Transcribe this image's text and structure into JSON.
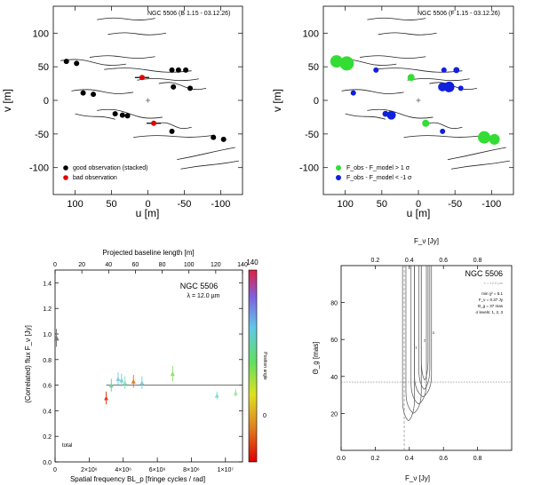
{
  "chart_data": [
    {
      "type": "scatter",
      "panel": "uv-coverage",
      "title": "NGC 5506 (B 1.15 - 03.12.26)",
      "xlabel": "u [m]",
      "ylabel": "v [m]",
      "xlim": [
        130,
        -130
      ],
      "ylim": [
        -140,
        140
      ],
      "xticks": [
        100,
        50,
        0,
        -50,
        -100
      ],
      "yticks": [
        100,
        50,
        0,
        -50,
        -100
      ],
      "good_points": [
        [
          112,
          58
        ],
        [
          98,
          55
        ],
        [
          89,
          11
        ],
        [
          75,
          9
        ],
        [
          45,
          -20
        ],
        [
          35,
          -22
        ],
        [
          28,
          -23
        ],
        [
          -33,
          45
        ],
        [
          -42,
          45
        ],
        [
          -52,
          45
        ],
        [
          -35,
          20
        ],
        [
          -58,
          18
        ],
        [
          -33,
          -46
        ],
        [
          -90,
          -55
        ],
        [
          -104,
          -58
        ]
      ],
      "bad_points": [
        [
          8,
          34
        ],
        [
          -8,
          -34
        ]
      ],
      "center_cross": [
        0,
        0
      ],
      "legend": [
        "good observation (stacked)",
        "bad observation"
      ],
      "legend_colors": [
        "#000000",
        "#e00000"
      ]
    },
    {
      "type": "scatter",
      "panel": "uv-residuals",
      "title": "NGC 5506 (F 1.15 - 03.12.26)",
      "xlabel": "u [m]",
      "ylabel": "v [m]",
      "xlim": [
        130,
        -130
      ],
      "ylim": [
        -140,
        140
      ],
      "xticks": [
        100,
        50,
        0,
        -50,
        -100
      ],
      "yticks": [
        100,
        50,
        0,
        -50,
        -100
      ],
      "positive_residuals": [
        [
          112,
          58
        ],
        [
          98,
          55
        ],
        [
          10,
          34
        ],
        [
          -10,
          -34
        ],
        [
          -90,
          -55
        ],
        [
          -104,
          -58
        ]
      ],
      "positive_sizes": [
        7,
        8,
        4,
        4,
        7,
        6
      ],
      "negative_residuals": [
        [
          58,
          45
        ],
        [
          89,
          11
        ],
        [
          45,
          -20
        ],
        [
          37,
          -22
        ],
        [
          -33,
          20
        ],
        [
          -42,
          20
        ],
        [
          -58,
          18
        ],
        [
          -33,
          -46
        ],
        [
          -35,
          45
        ],
        [
          -52,
          45
        ]
      ],
      "negative_sizes": [
        3,
        3,
        3,
        5,
        5,
        6,
        3,
        3,
        3,
        3
      ],
      "open_circles": [
        [
          -42,
          20
        ],
        [
          -52,
          45
        ],
        [
          45,
          -20
        ]
      ],
      "center_cross": [
        0,
        0
      ],
      "legend": [
        "F_obs - F_model > 1 σ",
        "F_obs - F_model < -1 σ"
      ],
      "legend_colors": [
        "#33dd33",
        "#1020dd"
      ]
    },
    {
      "type": "scatter",
      "panel": "correlated-flux",
      "title": "NGC 5506",
      "subtitle": "λ = 12.0 µm",
      "xlabel": "Spatial frequency BL_p [fringe cycles / rad]",
      "ylabel": "(Correlated) flux F_ν [Jy]",
      "top_xlabel": "Projected baseline length [m]",
      "xlim": [
        0,
        11000000.0
      ],
      "ylim": [
        0,
        1.5
      ],
      "xticks": [
        0,
        2000000.0,
        4000000.0,
        6000000.0,
        8000000.0,
        10000000.0
      ],
      "xtick_labels": [
        "0",
        "2×10⁶",
        "4×10⁶",
        "6×10⁶",
        "8×10⁶",
        "1×10⁷"
      ],
      "yticks": [
        0.0,
        0.2,
        0.4,
        0.6,
        0.8,
        1.0,
        1.2,
        1.4
      ],
      "top_ticks": [
        0,
        20,
        40,
        60,
        80,
        100,
        120,
        140
      ],
      "colorbar_ticks": [
        0,
        140
      ],
      "colorbar_ticklabels": [
        "0",
        "140"
      ],
      "colorbar_label": "Position angle",
      "total_flux": {
        "x": 30000.0,
        "y": 0.97,
        "err": 0.07,
        "color": "#777777"
      },
      "total_flux_label": "total",
      "points": [
        {
          "x": 3000000.0,
          "y": 0.5,
          "err": 0.05,
          "color": "#e04020"
        },
        {
          "x": 3300000.0,
          "y": 0.6,
          "err": 0.05,
          "color": "#6fd0a0"
        },
        {
          "x": 3700000.0,
          "y": 0.65,
          "err": 0.05,
          "color": "#80c8e8"
        },
        {
          "x": 3900000.0,
          "y": 0.64,
          "err": 0.05,
          "color": "#70d8d0"
        },
        {
          "x": 4100000.0,
          "y": 0.62,
          "err": 0.05,
          "color": "#90e0c0"
        },
        {
          "x": 4600000.0,
          "y": 0.63,
          "err": 0.05,
          "color": "#e08020"
        },
        {
          "x": 5100000.0,
          "y": 0.62,
          "err": 0.05,
          "color": "#80d0e0"
        },
        {
          "x": 6900000.0,
          "y": 0.69,
          "err": 0.06,
          "color": "#90e070"
        },
        {
          "x": 9500000.0,
          "y": 0.52,
          "err": 0.03,
          "color": "#80e0d8"
        },
        {
          "x": 10600000.0,
          "y": 0.54,
          "err": 0.03,
          "color": "#a0e8a0"
        }
      ],
      "model_line": {
        "x0": 3000000.0,
        "x1": 11000000.0,
        "y": 0.6
      }
    },
    {
      "type": "contour",
      "panel": "chi2-map",
      "title": "NGC 5506",
      "subtitle": "λ = 12.0 µm",
      "xlabel": "F_ν [Jy]",
      "ylabel": "Θ_g [mas]",
      "top_xlabel": "F_ν [Jy]",
      "xlim": [
        0,
        1.0
      ],
      "ylim": [
        0,
        100
      ],
      "xticks": [
        0.0,
        0.2,
        0.4,
        0.6,
        0.8
      ],
      "yticks": [
        20,
        40,
        60,
        80
      ],
      "top_ticks": [
        0.8,
        0.6,
        0.4,
        0.2
      ],
      "best_fit": {
        "F": 0.37,
        "theta": 37
      },
      "contour_level_labels": [
        "1",
        "2",
        "3"
      ],
      "legend_lines": [
        "min χ² = 5.1",
        "F_ν = 0.37 Jy",
        "Θ_g = 37 mas",
        "σ levels: 1, 2, 3"
      ]
    }
  ]
}
